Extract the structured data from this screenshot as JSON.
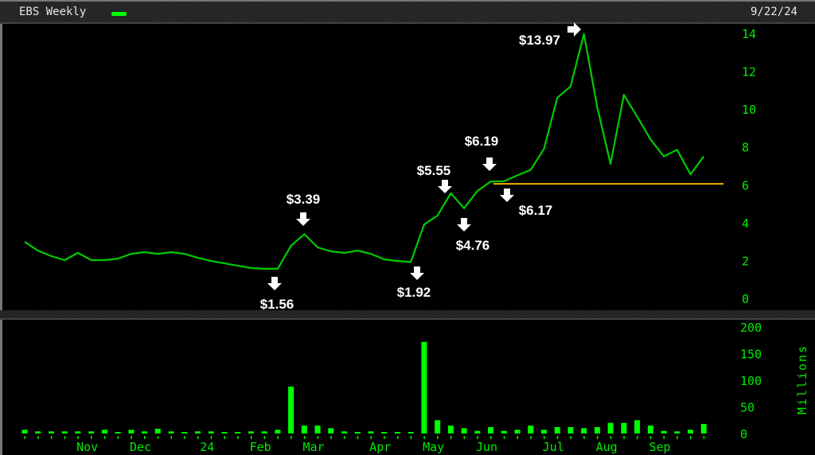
{
  "header": {
    "title": "EBS Weekly",
    "date": "9/22/24"
  },
  "colors": {
    "price_line": "#00cc00",
    "volume_bar": "#00ff00",
    "axis_text": "#00ee00",
    "support_line": "#f0b400",
    "background": "#000000",
    "annotation": "#ffffff"
  },
  "chart_data": [
    {
      "type": "line",
      "name": "EBS Weekly",
      "x": "weekly",
      "ylim": [
        0,
        14
      ],
      "yticks": [
        "0",
        "2",
        "4",
        "6",
        "8",
        "10",
        "12",
        "14"
      ],
      "values": [
        2.98,
        2.52,
        2.23,
        2.02,
        2.4,
        2.02,
        2.02,
        2.1,
        2.35,
        2.44,
        2.35,
        2.44,
        2.35,
        2.14,
        1.97,
        1.85,
        1.72,
        1.6,
        1.56,
        1.56,
        2.77,
        3.39,
        2.69,
        2.48,
        2.4,
        2.52,
        2.35,
        2.06,
        1.97,
        1.92,
        3.9,
        4.37,
        5.55,
        4.76,
        5.67,
        6.17,
        6.19,
        6.5,
        6.78,
        7.9,
        10.6,
        11.2,
        13.97,
        10.1,
        7.1,
        10.75,
        9.6,
        8.4,
        7.5,
        7.85,
        6.55,
        7.5
      ],
      "support_line": 6.05,
      "annotations": [
        {
          "label": "$1.56",
          "week_index": 19,
          "arrow": "down"
        },
        {
          "label": "$3.39",
          "week_index": 21,
          "arrow": "down"
        },
        {
          "label": "$1.92",
          "week_index": 29,
          "arrow": "down"
        },
        {
          "label": "$5.55",
          "week_index": 32,
          "arrow": "down"
        },
        {
          "label": "$4.76",
          "week_index": 33,
          "arrow": "down"
        },
        {
          "label": "$6.19",
          "week_index": 36,
          "arrow": "down"
        },
        {
          "label": "$6.17",
          "week_index": 35,
          "arrow": "down"
        },
        {
          "label": "$13.97",
          "week_index": 42,
          "arrow": "right"
        }
      ]
    },
    {
      "type": "bar",
      "ylabel": "Millions",
      "ylim": [
        0,
        200
      ],
      "yticks": [
        "0",
        "50",
        "100",
        "150",
        "200"
      ],
      "values": [
        7,
        4,
        4,
        4,
        4,
        4,
        7,
        2,
        7,
        4,
        9,
        4,
        2,
        4,
        4,
        2,
        2,
        4,
        4,
        7,
        88,
        15,
        15,
        10,
        4,
        2,
        4,
        2,
        2,
        2,
        172,
        25,
        15,
        10,
        5,
        12,
        5,
        7,
        15,
        7,
        12,
        12,
        10,
        12,
        20,
        20,
        25,
        15,
        5,
        4,
        7,
        18
      ],
      "xticks": [
        {
          "label": "Nov",
          "week_index": 5
        },
        {
          "label": "Dec",
          "week_index": 9
        },
        {
          "label": "24",
          "week_index": 14
        },
        {
          "label": "Feb",
          "week_index": 18
        },
        {
          "label": "Mar",
          "week_index": 22
        },
        {
          "label": "Apr",
          "week_index": 27
        },
        {
          "label": "May",
          "week_index": 31
        },
        {
          "label": "Jun",
          "week_index": 35
        },
        {
          "label": "Jul",
          "week_index": 40
        },
        {
          "label": "Aug",
          "week_index": 44
        },
        {
          "label": "Sep",
          "week_index": 48
        }
      ]
    }
  ]
}
